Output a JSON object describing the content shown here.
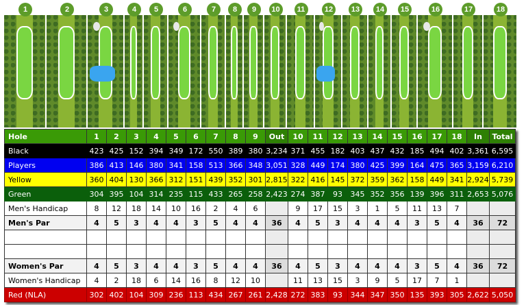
{
  "hole_badges": [
    "1",
    "2",
    "3",
    "4",
    "5",
    "6",
    "7",
    "8",
    "9",
    "10",
    "11",
    "12",
    "13",
    "14",
    "15",
    "16",
    "17",
    "18"
  ],
  "colors": {
    "header_green": "#3a9a06",
    "black": "#000000",
    "players_blue": "#0000f0",
    "yellow": "#ffff00",
    "green": "#0b5f0b",
    "red": "#cc0000"
  },
  "header": [
    "Hole",
    "1",
    "2",
    "3",
    "4",
    "5",
    "6",
    "7",
    "8",
    "9",
    "Out",
    "10",
    "11",
    "12",
    "13",
    "14",
    "15",
    "16",
    "17",
    "18",
    "In",
    "Total"
  ],
  "rows": {
    "black": [
      "Black",
      "423",
      "425",
      "152",
      "394",
      "349",
      "172",
      "550",
      "389",
      "380",
      "3,234",
      "371",
      "455",
      "182",
      "403",
      "437",
      "432",
      "185",
      "494",
      "402",
      "3,361",
      "6,595"
    ],
    "players": [
      "Players",
      "386",
      "413",
      "146",
      "380",
      "341",
      "158",
      "513",
      "366",
      "348",
      "3,051",
      "328",
      "449",
      "174",
      "380",
      "425",
      "399",
      "164",
      "475",
      "365",
      "3,159",
      "6,210"
    ],
    "yellow": [
      "Yellow",
      "360",
      "404",
      "130",
      "366",
      "312",
      "151",
      "439",
      "352",
      "301",
      "2,815",
      "322",
      "416",
      "145",
      "372",
      "359",
      "362",
      "158",
      "449",
      "341",
      "2,924",
      "5,739"
    ],
    "green": [
      "Green",
      "304",
      "395",
      "104",
      "314",
      "235",
      "115",
      "433",
      "265",
      "258",
      "2,423",
      "274",
      "387",
      "93",
      "345",
      "352",
      "356",
      "139",
      "396",
      "311",
      "2,653",
      "5,076"
    ],
    "mens_hcp": [
      "Men's Handicap",
      "8",
      "12",
      "18",
      "14",
      "10",
      "16",
      "2",
      "4",
      "6",
      "",
      "9",
      "17",
      "15",
      "3",
      "1",
      "5",
      "11",
      "13",
      "7",
      "",
      ""
    ],
    "mens_par": [
      "Men's Par",
      "4",
      "5",
      "3",
      "4",
      "4",
      "3",
      "5",
      "4",
      "4",
      "36",
      "4",
      "5",
      "3",
      "4",
      "4",
      "4",
      "3",
      "5",
      "4",
      "36",
      "72"
    ],
    "blank1": [
      "",
      "",
      "",
      "",
      "",
      "",
      "",
      "",
      "",
      "",
      "",
      "",
      "",
      "",
      "",
      "",
      "",
      "",
      "",
      "",
      "",
      ""
    ],
    "blank2": [
      "",
      "",
      "",
      "",
      "",
      "",
      "",
      "",
      "",
      "",
      "",
      "",
      "",
      "",
      "",
      "",
      "",
      "",
      "",
      "",
      "",
      ""
    ],
    "womens_par": [
      "Women's Par",
      "4",
      "5",
      "3",
      "4",
      "4",
      "3",
      "5",
      "4",
      "4",
      "36",
      "4",
      "5",
      "3",
      "4",
      "4",
      "4",
      "3",
      "5",
      "4",
      "36",
      "72"
    ],
    "womens_hcp": [
      "Women's Handicap",
      "4",
      "2",
      "18",
      "6",
      "14",
      "16",
      "8",
      "12",
      "10",
      "",
      "11",
      "13",
      "15",
      "3",
      "9",
      "5",
      "17",
      "7",
      "1",
      "",
      ""
    ],
    "red": [
      "Red (NLA)",
      "302",
      "402",
      "104",
      "309",
      "236",
      "113",
      "434",
      "267",
      "261",
      "2,428",
      "272",
      "383",
      "93",
      "344",
      "347",
      "350",
      "135",
      "393",
      "305",
      "2,622",
      "5,050"
    ]
  }
}
